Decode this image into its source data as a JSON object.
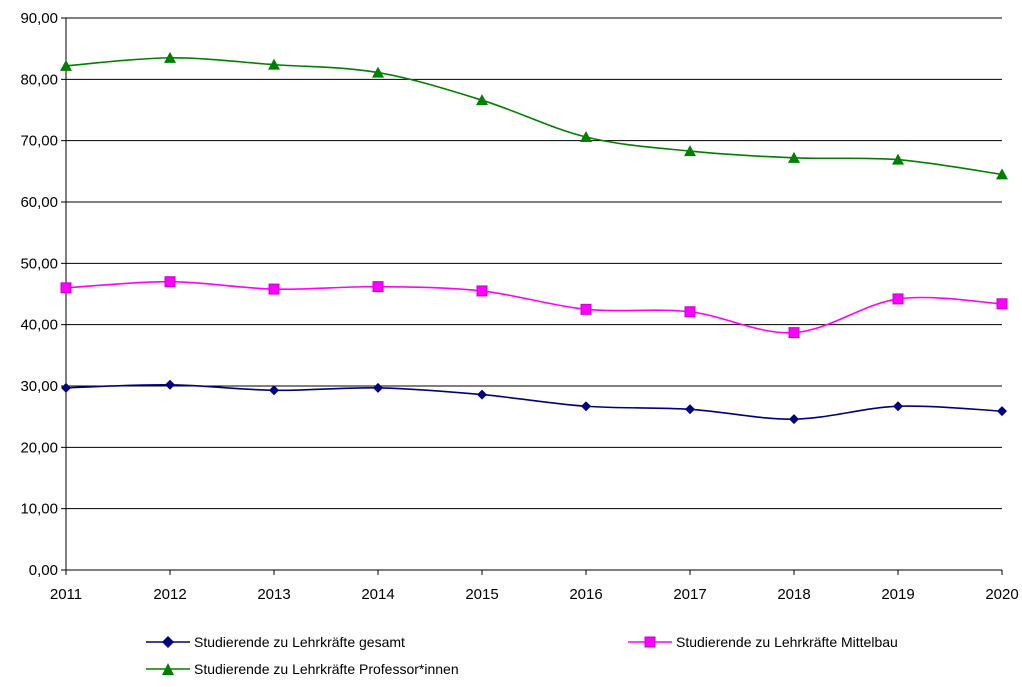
{
  "chart_data": {
    "type": "line",
    "x": [
      "2011",
      "2012",
      "2013",
      "2014",
      "2015",
      "2016",
      "2017",
      "2018",
      "2019",
      "2020"
    ],
    "ylim": [
      0,
      90
    ],
    "yticks": [
      "0,00",
      "10,00",
      "20,00",
      "30,00",
      "40,00",
      "50,00",
      "60,00",
      "70,00",
      "80,00",
      "90,00"
    ],
    "grid": "horizontal",
    "legend_position": "bottom",
    "series": [
      {
        "name": "Studierende zu Lehrkräfte gesamt",
        "color": "#000080",
        "marker": "diamond",
        "values": [
          29.7,
          30.2,
          29.3,
          29.7,
          28.6,
          26.7,
          26.2,
          24.6,
          26.7,
          25.9
        ]
      },
      {
        "name": "Studierende zu Lehrkräfte Mittelbau",
        "color": "#ff00ff",
        "marker": "square",
        "values": [
          46.0,
          47.0,
          45.8,
          46.2,
          45.5,
          42.5,
          42.1,
          38.7,
          44.2,
          43.4
        ]
      },
      {
        "name": "Studierende zu Lehrkräfte Professor*innen",
        "color": "#008000",
        "marker": "triangle",
        "values": [
          82.2,
          83.5,
          82.4,
          81.1,
          76.6,
          70.6,
          68.3,
          67.2,
          66.9,
          64.5
        ]
      }
    ]
  }
}
